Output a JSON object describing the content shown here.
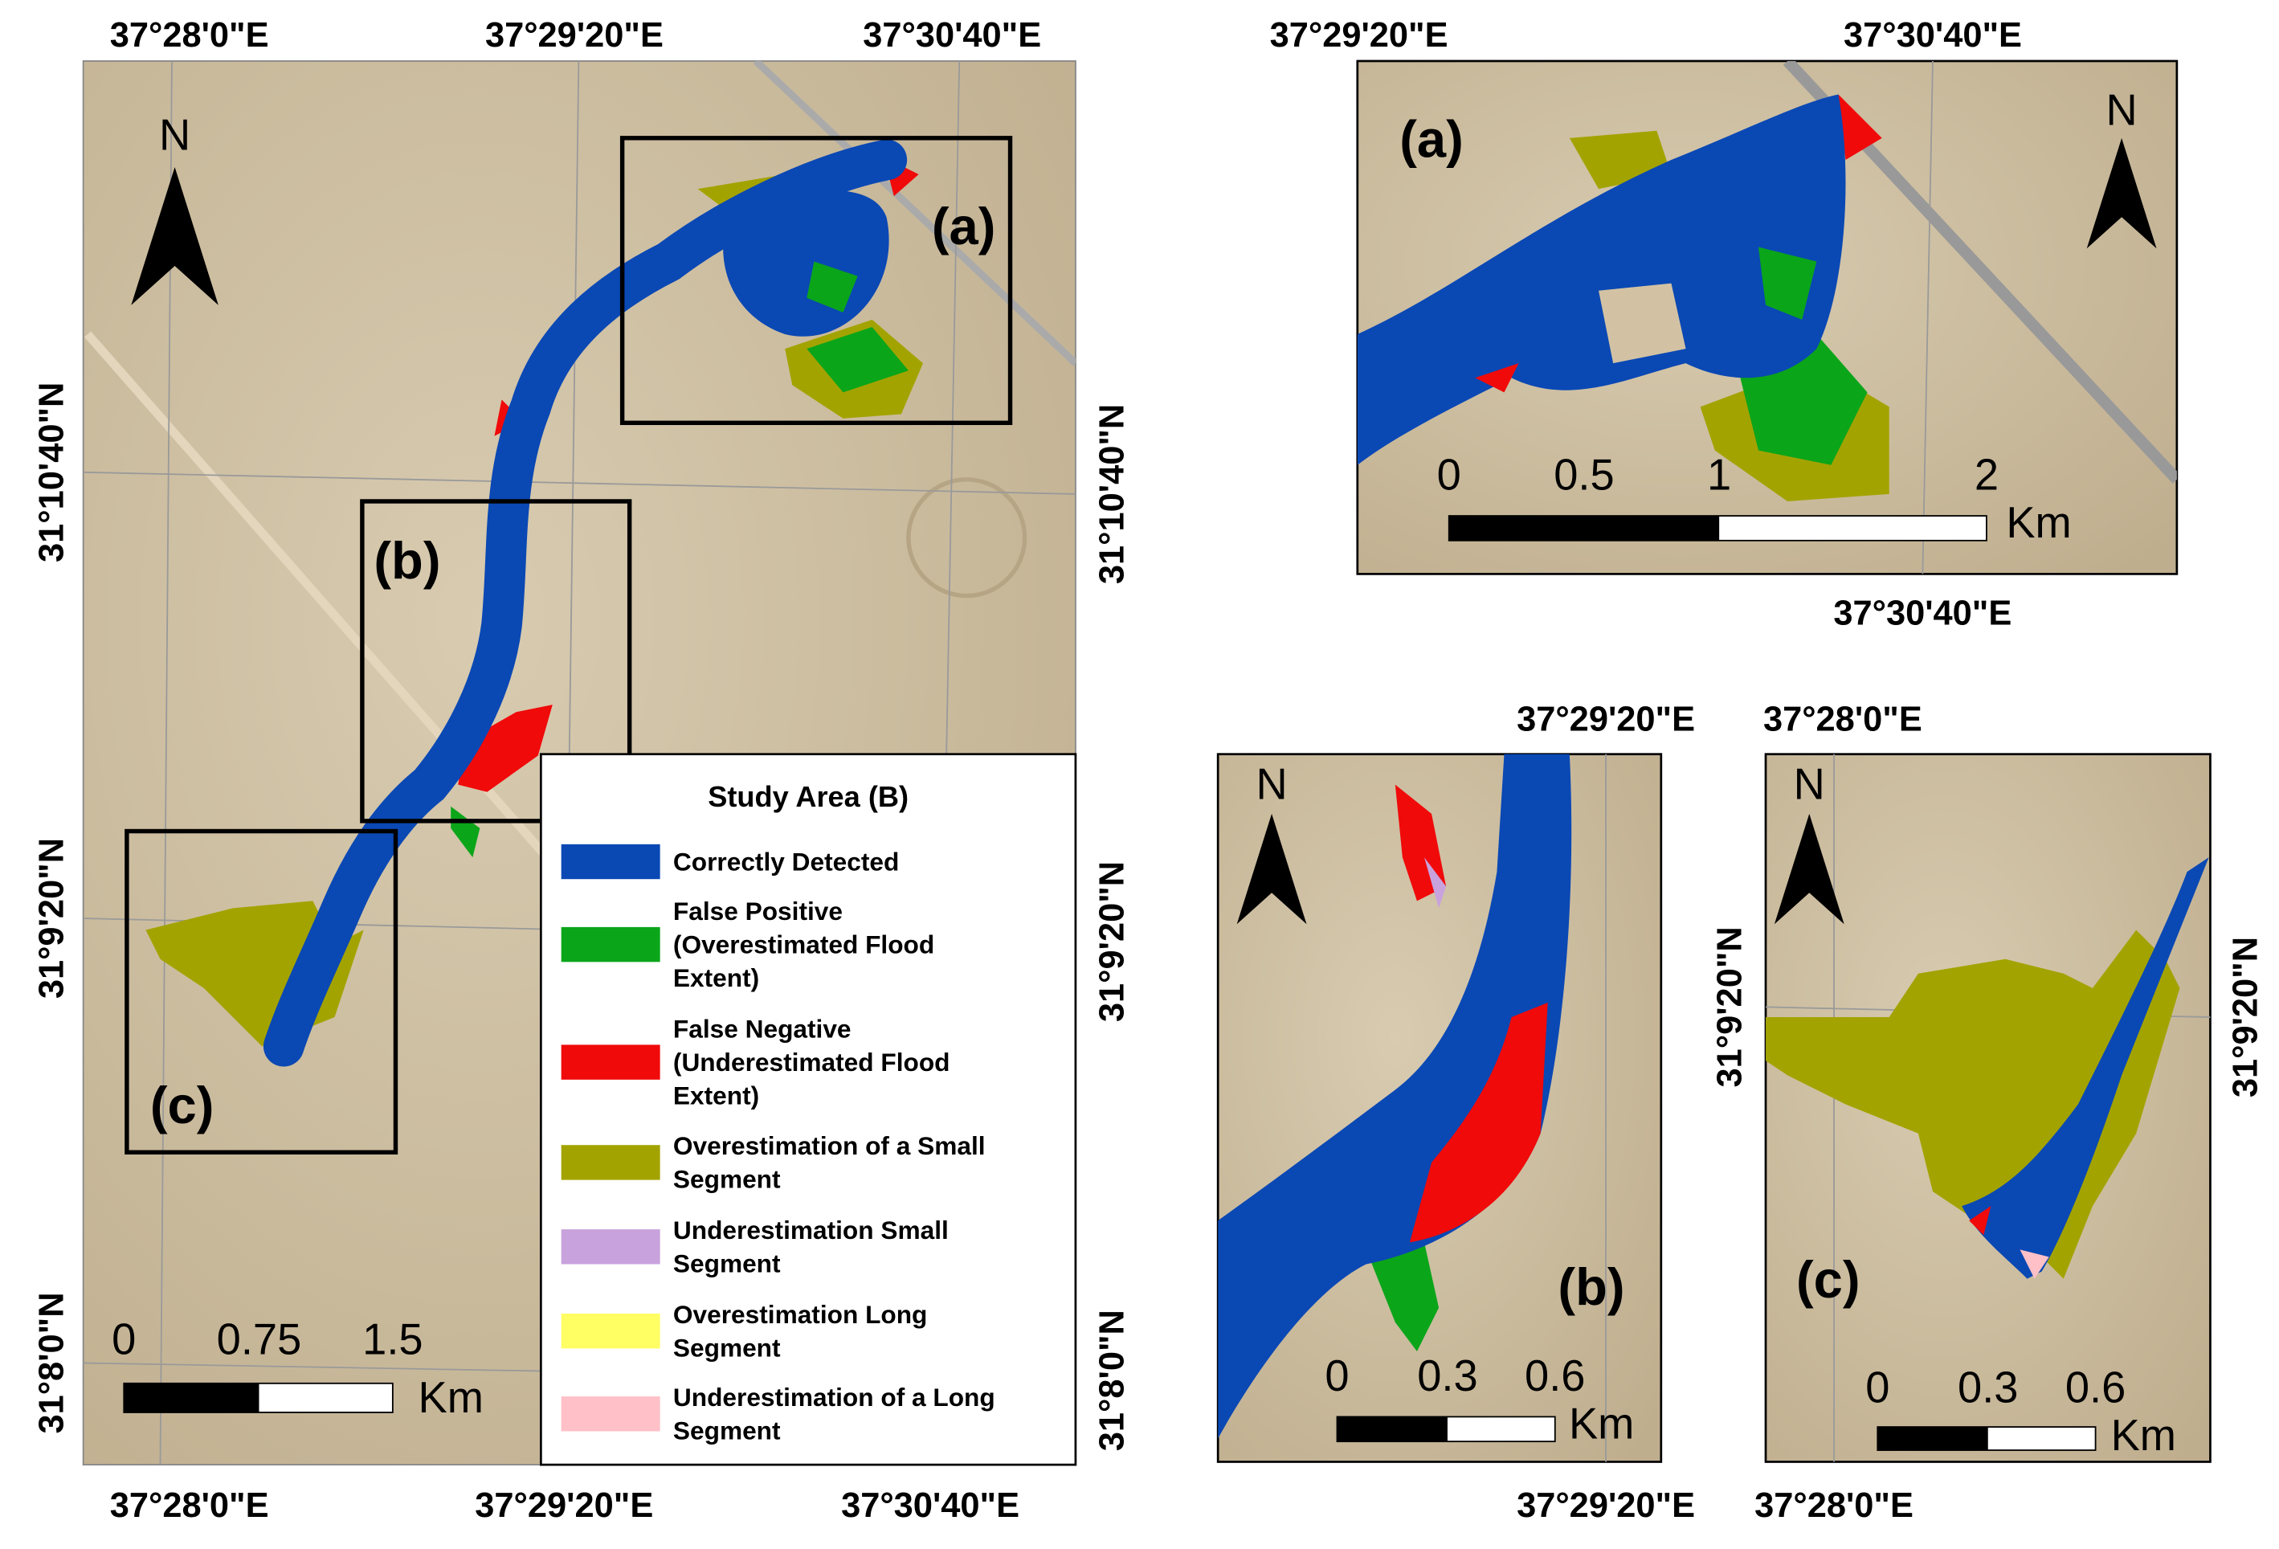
{
  "main_map": {
    "top_labels": [
      "37°28'0\"E",
      "37°29'20\"E",
      "37°30'40\"E"
    ],
    "bottom_labels": [
      "37°28'0\"E",
      "37°29'20\"E",
      "37°30'40\"E"
    ],
    "left_labels": [
      "31°10'40\"N",
      "31°9'20\"N",
      "31°8'0\"N"
    ],
    "right_labels": [
      "31°10'40\"N",
      "31°9'20\"N",
      "31°8'0\"N"
    ],
    "north": "N",
    "insets": [
      "(a)",
      "(b)",
      "(c)"
    ],
    "scale": {
      "ticks": [
        "0",
        "0.75",
        "1.5"
      ],
      "unit": "Km"
    }
  },
  "legend": {
    "title": "Study Area (B)",
    "items": [
      {
        "lines": [
          "Correctly Detected"
        ],
        "color": "#0a48b4"
      },
      {
        "lines": [
          "False Positive",
          "(Overestimated Flood",
          "Extent)"
        ],
        "color": "#0ba51a"
      },
      {
        "lines": [
          "False Negative",
          "(Underestimated Flood",
          "Extent)"
        ],
        "color": "#f00a0a"
      },
      {
        "lines": [
          "Overestimation of a Small",
          "Segment"
        ],
        "color": "#a3a300"
      },
      {
        "lines": [
          "Underestimation Small",
          "Segment"
        ],
        "color": "#c8a2dc"
      },
      {
        "lines": [
          "Overestimation Long",
          "Segment"
        ],
        "color": "#ffff64"
      },
      {
        "lines": [
          "Underestimation of a Long",
          "Segment"
        ],
        "color": "#ffc0c8"
      }
    ]
  },
  "panel_a": {
    "label": "(a)",
    "north": "N",
    "top_labels": [
      "37°29'20\"E",
      "37°30'40\"E"
    ],
    "bottom_label": "37°30'40\"E",
    "scale": {
      "ticks": [
        "0",
        "0.5",
        "1",
        "2"
      ],
      "unit": "Km"
    }
  },
  "panel_b": {
    "label": "(b)",
    "north": "N",
    "top_label": "37°29'20\"E",
    "bottom_label": "37°29'20\"E",
    "scale": {
      "ticks": [
        "0",
        "0.3",
        "0.6"
      ],
      "unit": "Km"
    }
  },
  "panel_c": {
    "label": "(c)",
    "north": "N",
    "top_label": "37°28'0\"E",
    "bottom_label": "37°28'0\"E",
    "left_label": "31°9'20\"N",
    "right_label": "31°9'20\"N",
    "scale": {
      "ticks": [
        "0",
        "0.3",
        "0.6"
      ],
      "unit": "Km"
    }
  }
}
